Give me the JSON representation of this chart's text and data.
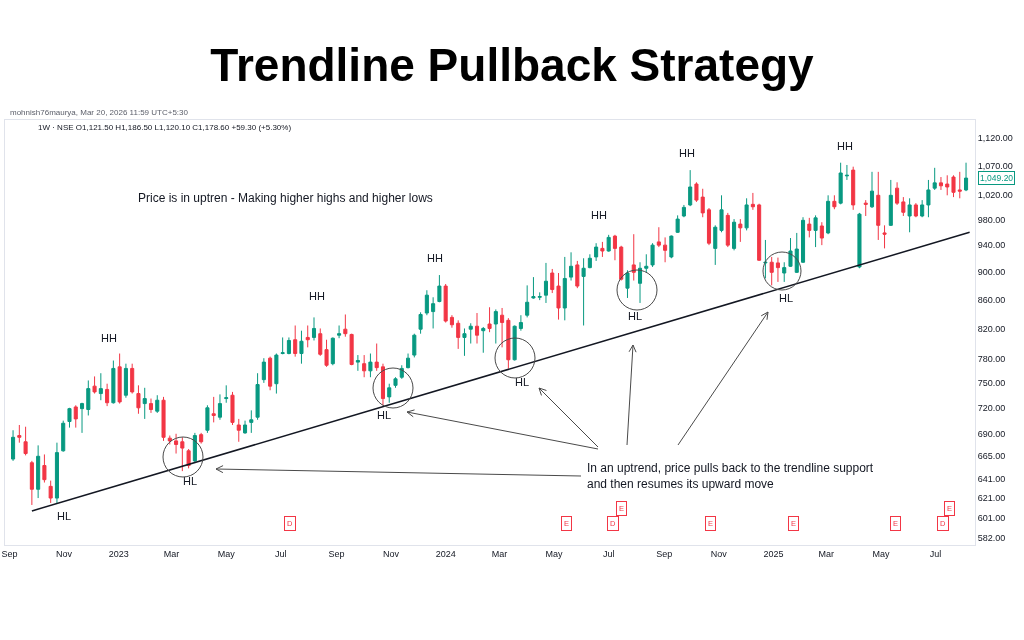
{
  "chart_data": {
    "type": "candlestick",
    "title": "Trendline Pullback Strategy",
    "log": true,
    "xlim": [
      "2022-08-27",
      "2025-08-14"
    ],
    "xticks": [
      {
        "value": "2022-09-01",
        "label": "Sep"
      },
      {
        "value": "2022-11-01",
        "label": "Nov"
      },
      {
        "value": "2023-01-01",
        "label": "2023"
      },
      {
        "value": "2023-03-01",
        "label": "Mar"
      },
      {
        "value": "2023-05-01",
        "label": "May"
      },
      {
        "value": "2023-07-01",
        "label": "Jul"
      },
      {
        "value": "2023-09-01",
        "label": "Sep"
      },
      {
        "value": "2023-11-01",
        "label": "Nov"
      },
      {
        "value": "2024-01-01",
        "label": "2024"
      },
      {
        "value": "2024-03-01",
        "label": "Mar"
      },
      {
        "value": "2024-05-01",
        "label": "May"
      },
      {
        "value": "2024-07-01",
        "label": "Jul"
      },
      {
        "value": "2024-09-01",
        "label": "Sep"
      },
      {
        "value": "2024-11-01",
        "label": "Nov"
      },
      {
        "value": "2025-01-01",
        "label": "2025"
      },
      {
        "value": "2025-03-01",
        "label": "Mar"
      },
      {
        "value": "2025-05-01",
        "label": "May"
      },
      {
        "value": "2025-07-01",
        "label": "Jul"
      }
    ],
    "ylim": [
      575,
      1154
    ],
    "yticks": [
      {
        "value": 582,
        "label": "582.00"
      },
      {
        "value": 601,
        "label": "601.00"
      },
      {
        "value": 621,
        "label": "621.00"
      },
      {
        "value": 641,
        "label": "641.00"
      },
      {
        "value": 665,
        "label": "665.00"
      },
      {
        "value": 690,
        "label": "690.00"
      },
      {
        "value": 720,
        "label": "720.00"
      },
      {
        "value": 750,
        "label": "750.00"
      },
      {
        "value": 780,
        "label": "780.00"
      },
      {
        "value": 820,
        "label": "820.00"
      },
      {
        "value": 860,
        "label": "860.00"
      },
      {
        "value": 900,
        "label": "900.00"
      },
      {
        "value": 940,
        "label": "940.00"
      },
      {
        "value": 980,
        "label": "980.00"
      },
      {
        "value": 1020,
        "label": "1,020.00"
      },
      {
        "value": 1070,
        "label": "1,070.00"
      },
      {
        "value": 1120,
        "label": "1,120.00"
      }
    ],
    "series": [
      {
        "type": "line",
        "color": "#131722",
        "x": [
          "2022-09-26",
          "2025-08-08"
        ],
        "values": [
          608,
          960
        ]
      },
      {
        "x": [
          "2022-09-05",
          "2022-09-12",
          "2022-09-19",
          "2022-09-26",
          "2022-10-03",
          "2022-10-10",
          "2022-10-17",
          "2022-10-24",
          "2022-10-31",
          "2022-11-07",
          "2022-11-14",
          "2022-11-21",
          "2022-11-28",
          "2022-12-05",
          "2022-12-12",
          "2022-12-19",
          "2022-12-26",
          "2023-01-02",
          "2023-01-09",
          "2023-01-16",
          "2023-01-23",
          "2023-01-30",
          "2023-02-06",
          "2023-02-13",
          "2023-02-20",
          "2023-02-27",
          "2023-03-06",
          "2023-03-13",
          "2023-03-20",
          "2023-03-27",
          "2023-04-03",
          "2023-04-10",
          "2023-04-17",
          "2023-04-24",
          "2023-05-01",
          "2023-05-08",
          "2023-05-15",
          "2023-05-22",
          "2023-05-29",
          "2023-06-05",
          "2023-06-12",
          "2023-06-19",
          "2023-06-26",
          "2023-07-03",
          "2023-07-10",
          "2023-07-17",
          "2023-07-24",
          "2023-07-31",
          "2023-08-07",
          "2023-08-14",
          "2023-08-21",
          "2023-08-28",
          "2023-09-04",
          "2023-09-11",
          "2023-09-18",
          "2023-09-25",
          "2023-10-02",
          "2023-10-09",
          "2023-10-16",
          "2023-10-23",
          "2023-10-30",
          "2023-11-06",
          "2023-11-13",
          "2023-11-20",
          "2023-11-27",
          "2023-12-04",
          "2023-12-11",
          "2023-12-18",
          "2023-12-25",
          "2024-01-01",
          "2024-01-08",
          "2024-01-15",
          "2024-01-22",
          "2024-01-29",
          "2024-02-05",
          "2024-02-12",
          "2024-02-19",
          "2024-02-26",
          "2024-03-04",
          "2024-03-11",
          "2024-03-18",
          "2024-03-25",
          "2024-04-01",
          "2024-04-08",
          "2024-04-15",
          "2024-04-22",
          "2024-04-29",
          "2024-05-06",
          "2024-05-13",
          "2024-05-20",
          "2024-05-27",
          "2024-06-03",
          "2024-06-10",
          "2024-06-17",
          "2024-06-24",
          "2024-07-01",
          "2024-07-08",
          "2024-07-15",
          "2024-07-22",
          "2024-07-29",
          "2024-08-05",
          "2024-08-12",
          "2024-08-19",
          "2024-08-26",
          "2024-09-02",
          "2024-09-09",
          "2024-09-16",
          "2024-09-23",
          "2024-09-30",
          "2024-10-07",
          "2024-10-14",
          "2024-10-21",
          "2024-10-28",
          "2024-11-04",
          "2024-11-11",
          "2024-11-18",
          "2024-11-25",
          "2024-12-02",
          "2024-12-09",
          "2024-12-16",
          "2024-12-23",
          "2024-12-30",
          "2025-01-06",
          "2025-01-13",
          "2025-01-20",
          "2025-01-27",
          "2025-02-03",
          "2025-02-10",
          "2025-02-17",
          "2025-02-24",
          "2025-03-03",
          "2025-03-10",
          "2025-03-17",
          "2025-03-24",
          "2025-03-31",
          "2025-04-07",
          "2025-04-14",
          "2025-04-21",
          "2025-04-28",
          "2025-05-05",
          "2025-05-12",
          "2025-05-19",
          "2025-05-26",
          "2025-06-02",
          "2025-06-09",
          "2025-06-16",
          "2025-06-23",
          "2025-06-30",
          "2025-07-07",
          "2025-07-14",
          "2025-07-21",
          "2025-07-28",
          "2025-08-04"
        ],
        "ohlc": [
          [
            662,
            694,
            660,
            686
          ],
          [
            688,
            700,
            680,
            686
          ],
          [
            681,
            698,
            666,
            668
          ],
          [
            658,
            660,
            614,
            630
          ],
          [
            630,
            677,
            621,
            665
          ],
          [
            655,
            667,
            637,
            640
          ],
          [
            633,
            639,
            616,
            621
          ],
          [
            621,
            680,
            616,
            669
          ],
          [
            671,
            705,
            670,
            702
          ],
          [
            704,
            720,
            697,
            719
          ],
          [
            721,
            723,
            697,
            707
          ],
          [
            719,
            726,
            691,
            725
          ],
          [
            718,
            753,
            711,
            743
          ],
          [
            746,
            758,
            737,
            739
          ],
          [
            737,
            762,
            729,
            743
          ],
          [
            742,
            749,
            722,
            726
          ],
          [
            726,
            778,
            725,
            768
          ],
          [
            770,
            787,
            725,
            727
          ],
          [
            735,
            774,
            732,
            768
          ],
          [
            768,
            774,
            737,
            739
          ],
          [
            737,
            747,
            713,
            720
          ],
          [
            725,
            744,
            707,
            731
          ],
          [
            725,
            731,
            714,
            718
          ],
          [
            716,
            735,
            714,
            729
          ],
          [
            729,
            733,
            682,
            686
          ],
          [
            685,
            688,
            678,
            682
          ],
          [
            682,
            690,
            668,
            678
          ],
          [
            681,
            686,
            649,
            674
          ],
          [
            671,
            673,
            652,
            655
          ],
          [
            660,
            691,
            658,
            688
          ],
          [
            689,
            691,
            679,
            681
          ],
          [
            694,
            723,
            691,
            720
          ],
          [
            713,
            733,
            703,
            711
          ],
          [
            709,
            736,
            706,
            725
          ],
          [
            731,
            747,
            726,
            732
          ],
          [
            735,
            739,
            700,
            703
          ],
          [
            700,
            707,
            681,
            694
          ],
          [
            691,
            705,
            690,
            700
          ],
          [
            703,
            717,
            691,
            706
          ],
          [
            709,
            762,
            706,
            748
          ],
          [
            754,
            781,
            750,
            776
          ],
          [
            781,
            783,
            741,
            746
          ],
          [
            749,
            787,
            737,
            785
          ],
          [
            787,
            808,
            786,
            788
          ],
          [
            787,
            808,
            786,
            804
          ],
          [
            805,
            824,
            783,
            787
          ],
          [
            787,
            817,
            774,
            803
          ],
          [
            808,
            824,
            795,
            805
          ],
          [
            808,
            835,
            804,
            820
          ],
          [
            813,
            820,
            784,
            786
          ],
          [
            792,
            805,
            770,
            772
          ],
          [
            774,
            808,
            772,
            807
          ],
          [
            811,
            824,
            807,
            813
          ],
          [
            819,
            839,
            809,
            813
          ],
          [
            812,
            813,
            772,
            773
          ],
          [
            776,
            785,
            765,
            778
          ],
          [
            774,
            785,
            757,
            765
          ],
          [
            765,
            787,
            757,
            776
          ],
          [
            776,
            800,
            765,
            769
          ],
          [
            770,
            774,
            723,
            731
          ],
          [
            733,
            749,
            726,
            744
          ],
          [
            747,
            757,
            744,
            755
          ],
          [
            757,
            772,
            755,
            768
          ],
          [
            769,
            787,
            768,
            781
          ],
          [
            785,
            813,
            782,
            811
          ],
          [
            819,
            842,
            813,
            839
          ],
          [
            841,
            873,
            838,
            866
          ],
          [
            843,
            863,
            820,
            854
          ],
          [
            857,
            895,
            856,
            879
          ],
          [
            879,
            882,
            828,
            830
          ],
          [
            835,
            838,
            821,
            825
          ],
          [
            827,
            831,
            793,
            808
          ],
          [
            808,
            820,
            784,
            813
          ],
          [
            819,
            827,
            800,
            823
          ],
          [
            823,
            841,
            800,
            811
          ],
          [
            817,
            822,
            788,
            820
          ],
          [
            826,
            849,
            815,
            820
          ],
          [
            826,
            846,
            800,
            843
          ],
          [
            838,
            848,
            795,
            828
          ],
          [
            831,
            834,
            768,
            779
          ],
          [
            779,
            824,
            778,
            823
          ],
          [
            820,
            838,
            817,
            828
          ],
          [
            838,
            880,
            835,
            856
          ],
          [
            862,
            892,
            861,
            864
          ],
          [
            863,
            870,
            859,
            864
          ],
          [
            866,
            913,
            855,
            886
          ],
          [
            898,
            904,
            869,
            874
          ],
          [
            879,
            898,
            832,
            848
          ],
          [
            848,
            922,
            831,
            890
          ],
          [
            892,
            929,
            887,
            908
          ],
          [
            910,
            916,
            876,
            879
          ],
          [
            893,
            920,
            824,
            905
          ],
          [
            906,
            926,
            905,
            920
          ],
          [
            922,
            943,
            916,
            937
          ],
          [
            935,
            945,
            922,
            931
          ],
          [
            931,
            956,
            930,
            952
          ],
          [
            954,
            956,
            917,
            935
          ],
          [
            937,
            939,
            887,
            889
          ],
          [
            876,
            902,
            862,
            898
          ],
          [
            910,
            957,
            887,
            899
          ],
          [
            883,
            914,
            855,
            905
          ],
          [
            905,
            926,
            899,
            908
          ],
          [
            910,
            943,
            907,
            940
          ],
          [
            945,
            968,
            937,
            940
          ],
          [
            940,
            952,
            914,
            932
          ],
          [
            922,
            955,
            920,
            954
          ],
          [
            960,
            987,
            959,
            981
          ],
          [
            986,
            1004,
            984,
            1000
          ],
          [
            1004,
            1063,
            1002,
            1034
          ],
          [
            1039,
            1042,
            1009,
            1012
          ],
          [
            1017,
            1031,
            984,
            991
          ],
          [
            996,
            999,
            940,
            943
          ],
          [
            935,
            971,
            910,
            968
          ],
          [
            963,
            1020,
            960,
            996
          ],
          [
            987,
            991,
            937,
            940
          ],
          [
            935,
            981,
            932,
            976
          ],
          [
            973,
            981,
            945,
            967
          ],
          [
            967,
            1015,
            963,
            1004
          ],
          [
            1005,
            1024,
            996,
            1001
          ],
          [
            1004,
            1006,
            916,
            917
          ],
          [
            913,
            948,
            890,
            914
          ],
          [
            914,
            922,
            880,
            899
          ],
          [
            913,
            921,
            885,
            906
          ],
          [
            898,
            914,
            885,
            906
          ],
          [
            908,
            951,
            907,
            931
          ],
          [
            899,
            959,
            898,
            934
          ],
          [
            914,
            984,
            913,
            979
          ],
          [
            973,
            983,
            952,
            963
          ],
          [
            963,
            987,
            937,
            983
          ],
          [
            970,
            976,
            940,
            951
          ],
          [
            959,
            1020,
            957,
            1010
          ],
          [
            1010,
            1020,
            997,
            1001
          ],
          [
            1007,
            1076,
            1005,
            1058
          ],
          [
            1053,
            1072,
            1046,
            1054
          ],
          [
            1063,
            1069,
            996,
            1004
          ],
          [
            907,
            991,
            905,
            989
          ],
          [
            1007,
            1012,
            986,
            1005
          ],
          [
            1001,
            1060,
            999,
            1027
          ],
          [
            1020,
            1060,
            948,
            971
          ],
          [
            959,
            971,
            935,
            957
          ],
          [
            971,
            1046,
            970,
            1020
          ],
          [
            1032,
            1042,
            1004,
            1007
          ],
          [
            1009,
            1017,
            986,
            992
          ],
          [
            986,
            1015,
            960,
            1004
          ],
          [
            1004,
            1007,
            984,
            986
          ],
          [
            986,
            1012,
            984,
            1004
          ],
          [
            1004,
            1046,
            984,
            1029
          ],
          [
            1032,
            1067,
            1029,
            1041
          ],
          [
            1041,
            1051,
            1029,
            1036
          ],
          [
            1039,
            1054,
            1020,
            1034
          ],
          [
            1051,
            1054,
            1017,
            1025
          ],
          [
            1029,
            1060,
            1015,
            1027
          ],
          [
            1029,
            1076,
            1027,
            1049.2
          ]
        ],
        "colors": [
          "#089981",
          "#f23645",
          "#f23645",
          "#f23645",
          "#089981",
          "#f23645",
          "#f23645",
          "#089981",
          "#089981",
          "#089981",
          "#f23645",
          "#089981",
          "#089981",
          "#f23645",
          "#089981",
          "#f23645",
          "#089981",
          "#f23645",
          "#089981",
          "#f23645",
          "#f23645",
          "#089981",
          "#f23645",
          "#089981",
          "#f23645",
          "#f23645",
          "#f23645",
          "#f23645",
          "#f23645",
          "#089981",
          "#f23645",
          "#089981",
          "#f23645",
          "#089981",
          "#089981",
          "#f23645",
          "#f23645",
          "#089981",
          "#089981",
          "#089981",
          "#089981",
          "#f23645",
          "#089981",
          "#089981",
          "#089981",
          "#f23645",
          "#089981",
          "#f23645",
          "#089981",
          "#f23645",
          "#f23645",
          "#089981",
          "#089981",
          "#f23645",
          "#f23645",
          "#089981",
          "#f23645",
          "#089981",
          "#f23645",
          "#f23645",
          "#089981",
          "#089981",
          "#089981",
          "#089981",
          "#089981",
          "#089981",
          "#089981",
          "#089981",
          "#089981",
          "#f23645",
          "#f23645",
          "#f23645",
          "#089981",
          "#089981",
          "#f23645",
          "#089981",
          "#f23645",
          "#089981",
          "#f23645",
          "#f23645",
          "#089981",
          "#089981",
          "#089981",
          "#089981",
          "#089981",
          "#089981",
          "#f23645",
          "#f23645",
          "#089981",
          "#089981",
          "#f23645",
          "#089981",
          "#089981",
          "#089981",
          "#f23645",
          "#089981",
          "#f23645",
          "#f23645",
          "#089981",
          "#f23645",
          "#089981",
          "#089981",
          "#089981",
          "#f23645",
          "#f23645",
          "#089981",
          "#089981",
          "#089981",
          "#089981",
          "#f23645",
          "#f23645",
          "#f23645",
          "#089981",
          "#089981",
          "#f23645",
          "#089981",
          "#f23645",
          "#089981",
          "#f23645",
          "#f23645",
          "#089981",
          "#f23645",
          "#f23645",
          "#089981",
          "#089981",
          "#089981",
          "#089981",
          "#f23645",
          "#089981",
          "#f23645",
          "#089981",
          "#f23645",
          "#089981",
          "#089981",
          "#f23645",
          "#089981",
          "#f23645",
          "#089981",
          "#f23645",
          "#f23645",
          "#089981",
          "#f23645",
          "#f23645",
          "#089981",
          "#f23645",
          "#089981",
          "#089981",
          "#089981",
          "#f23645",
          "#f23645",
          "#f23645",
          "#f23645",
          "#089981"
        ]
      }
    ],
    "annotations": [
      "mohnish76maurya, Mar 20, 2026 11:59 UTC+5:30",
      "1W · NSE O1,121.50 H1,186.50 L1,120.10 C1,178.60 +59.30 (+5.30%)",
      "Price is in uptren - Making higher highs and higher lows",
      "In an uptrend, price pulls back to the trendline support and then resumes its upward move",
      "HH",
      "HH",
      "HH",
      "HH",
      "HH",
      "HH",
      "HL",
      "HL",
      "HL",
      "HL",
      "HL",
      "HL",
      {
        "text": "1,049.20",
        "y": 1049.2
      },
      {
        "text": "D",
        "x": "2023-07-11"
      },
      {
        "text": "E",
        "x": "2024-05-15"
      },
      {
        "text": "D",
        "x": "2024-07-06"
      },
      {
        "text": "E",
        "x": "2024-07-15"
      },
      {
        "text": "E",
        "x": "2024-10-23"
      },
      {
        "text": "E",
        "x": "2025-01-23"
      },
      {
        "text": "E",
        "x": "2025-05-17"
      },
      {
        "text": "D",
        "x": "2025-07-09"
      },
      {
        "text": "E",
        "x": "2025-07-17"
      }
    ]
  }
}
